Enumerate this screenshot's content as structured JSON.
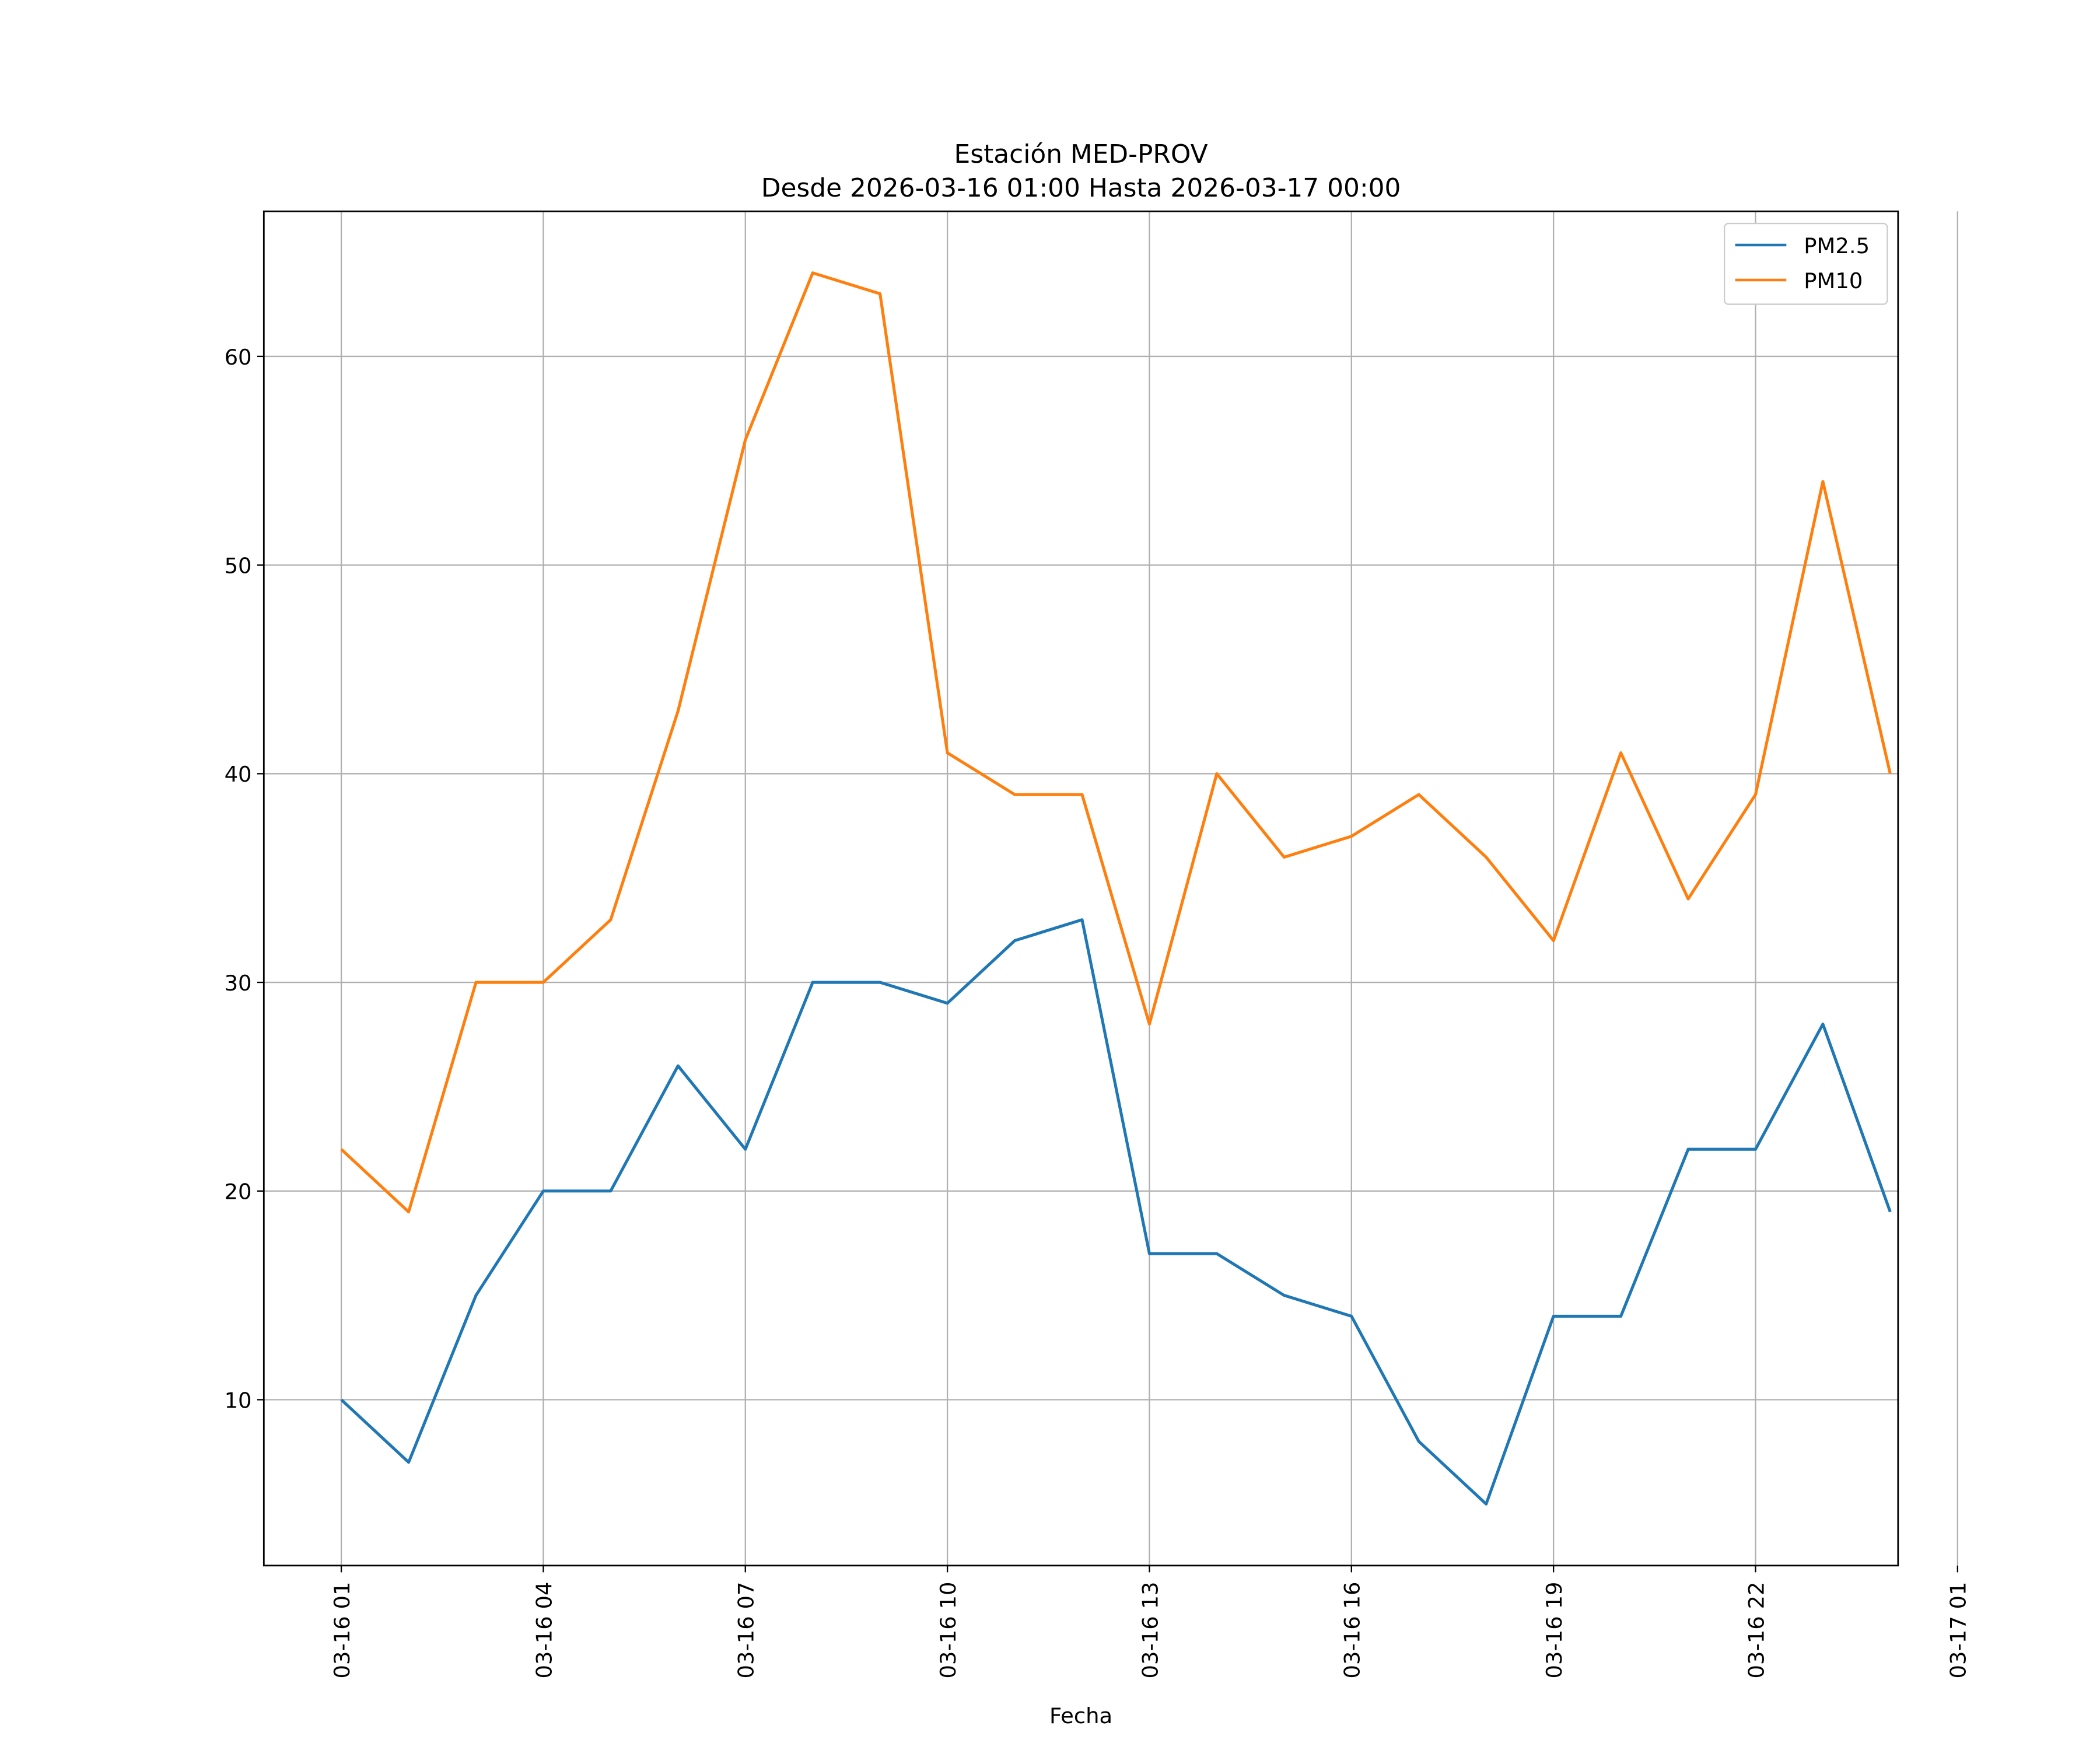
{
  "chart_data": {
    "type": "line",
    "title": "Estación MED-PROV",
    "subtitle": "Desde 2026-03-16 01:00 Hasta 2026-03-17 00:00",
    "xlabel": "Fecha",
    "ylabel": "",
    "x": [
      "2026-03-16 01:00",
      "2026-03-16 02:00",
      "2026-03-16 03:00",
      "2026-03-16 04:00",
      "2026-03-16 05:00",
      "2026-03-16 06:00",
      "2026-03-16 07:00",
      "2026-03-16 08:00",
      "2026-03-16 09:00",
      "2026-03-16 10:00",
      "2026-03-16 11:00",
      "2026-03-16 12:00",
      "2026-03-16 13:00",
      "2026-03-16 14:00",
      "2026-03-16 15:00",
      "2026-03-16 16:00",
      "2026-03-16 17:00",
      "2026-03-16 18:00",
      "2026-03-16 19:00",
      "2026-03-16 20:00",
      "2026-03-16 21:00",
      "2026-03-16 22:00",
      "2026-03-16 23:00",
      "2026-03-17 00:00"
    ],
    "series": [
      {
        "name": "PM2.5",
        "color": "#1f77b4",
        "values": [
          10,
          7,
          15,
          20,
          20,
          26,
          22,
          30,
          30,
          29,
          32,
          33,
          17,
          17,
          15,
          14,
          8,
          5,
          14,
          14,
          22,
          22,
          28,
          19
        ]
      },
      {
        "name": "PM10",
        "color": "#ff7f0e",
        "values": [
          22,
          19,
          30,
          30,
          33,
          43,
          56,
          64,
          63,
          41,
          39,
          39,
          28,
          40,
          36,
          37,
          39,
          36,
          32,
          41,
          34,
          39,
          54,
          40
        ]
      }
    ],
    "xlim": [
      "2026-03-15 23:51",
      "2026-03-17 00:07"
    ],
    "ylim": [
      2.05,
      66.95
    ],
    "xticks": [
      {
        "value": "2026-03-16 01:00",
        "label": "03-16 01"
      },
      {
        "value": "2026-03-16 04:00",
        "label": "03-16 04"
      },
      {
        "value": "2026-03-16 07:00",
        "label": "03-16 07"
      },
      {
        "value": "2026-03-16 10:00",
        "label": "03-16 10"
      },
      {
        "value": "2026-03-16 13:00",
        "label": "03-16 13"
      },
      {
        "value": "2026-03-16 16:00",
        "label": "03-16 16"
      },
      {
        "value": "2026-03-16 19:00",
        "label": "03-16 19"
      },
      {
        "value": "2026-03-16 22:00",
        "label": "03-16 22"
      },
      {
        "value": "2026-03-17 01:00",
        "label": "03-17 01"
      }
    ],
    "yticks": [
      10,
      20,
      30,
      40,
      50,
      60
    ],
    "grid": true,
    "legend": "top-right"
  }
}
